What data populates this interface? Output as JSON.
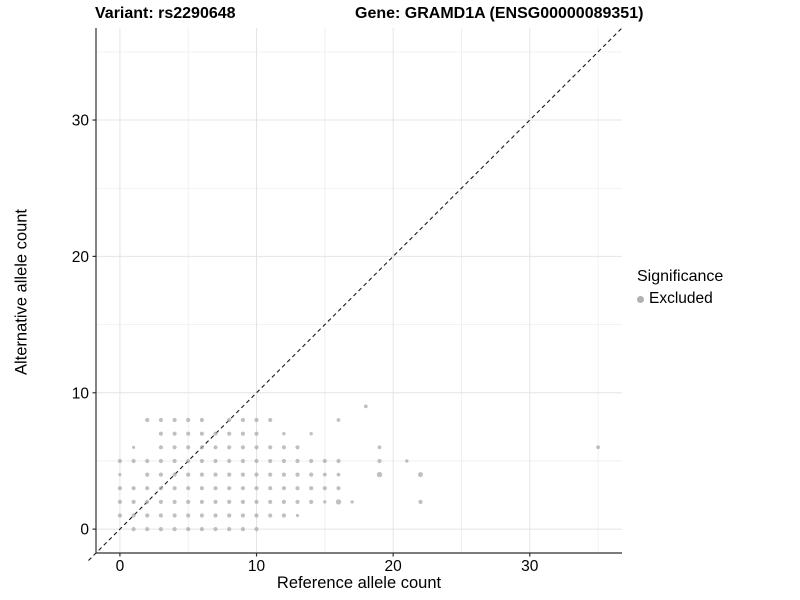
{
  "header": {
    "variant_title": "Variant: rs2290648",
    "gene_title": "Gene: GRAMD1A (ENSG00000089351)"
  },
  "chart_data": {
    "type": "scatter",
    "xlabel": "Reference allele count",
    "ylabel": "Alternative allele count",
    "xlim": [
      -1.75,
      36.75
    ],
    "ylim": [
      -1.75,
      36.75
    ],
    "x_ticks": [
      0,
      10,
      20,
      30
    ],
    "y_ticks": [
      0,
      10,
      20,
      30
    ],
    "minor_gridlines": [
      5,
      15,
      25,
      35
    ],
    "grid": "on",
    "identity_line": {
      "style": "dashed",
      "slope": 1,
      "intercept": 0
    },
    "legend": {
      "title": "Significance",
      "position": "right",
      "items": [
        {
          "label": "Excluded",
          "color": "#a8a8a8"
        }
      ]
    },
    "series": [
      {
        "name": "Excluded",
        "points_format": "[x, y, radius_px]",
        "points": [
          [
            1,
            0,
            2.1
          ],
          [
            2,
            0,
            2.1
          ],
          [
            3,
            0,
            2.1
          ],
          [
            4,
            0,
            2.1
          ],
          [
            5,
            0,
            2.1
          ],
          [
            6,
            0,
            2.1
          ],
          [
            7,
            0,
            2.1
          ],
          [
            8,
            0,
            2.1
          ],
          [
            9,
            0,
            2.1
          ],
          [
            10,
            0,
            2.1
          ],
          [
            0,
            1,
            2.1
          ],
          [
            1,
            1,
            2.1
          ],
          [
            2,
            1,
            2.1
          ],
          [
            3,
            1,
            2.1
          ],
          [
            4,
            1,
            2.1
          ],
          [
            5,
            1,
            2.1
          ],
          [
            6,
            1,
            2.1
          ],
          [
            7,
            1,
            2.1
          ],
          [
            8,
            1,
            2.1
          ],
          [
            9,
            1,
            2.1
          ],
          [
            10,
            1,
            2.1
          ],
          [
            11,
            1,
            2.1
          ],
          [
            12,
            1,
            2.1
          ],
          [
            13,
            1,
            1.6
          ],
          [
            0,
            2,
            2.1
          ],
          [
            1,
            2,
            2.1
          ],
          [
            2,
            2,
            2.1
          ],
          [
            3,
            2,
            2.1
          ],
          [
            4,
            2,
            2.1
          ],
          [
            5,
            2,
            2.1
          ],
          [
            6,
            2,
            2.1
          ],
          [
            7,
            2,
            2.1
          ],
          [
            8,
            2,
            2.1
          ],
          [
            9,
            2,
            2.1
          ],
          [
            10,
            2,
            2.1
          ],
          [
            11,
            2,
            2.1
          ],
          [
            12,
            2,
            2.1
          ],
          [
            13,
            2,
            2.1
          ],
          [
            14,
            2,
            2.1
          ],
          [
            15,
            2,
            1.7
          ],
          [
            16,
            2,
            2.7
          ],
          [
            17,
            2,
            1.7
          ],
          [
            22,
            2,
            2.1
          ],
          [
            0,
            3,
            2.1
          ],
          [
            1,
            3,
            2.1
          ],
          [
            2,
            3,
            2.1
          ],
          [
            3,
            3,
            2.1
          ],
          [
            4,
            3,
            2.1
          ],
          [
            5,
            3,
            2.1
          ],
          [
            6,
            3,
            2.1
          ],
          [
            7,
            3,
            2.1
          ],
          [
            8,
            3,
            2.1
          ],
          [
            9,
            3,
            2.1
          ],
          [
            10,
            3,
            2.1
          ],
          [
            11,
            3,
            2.1
          ],
          [
            12,
            3,
            2.1
          ],
          [
            13,
            3,
            2.1
          ],
          [
            14,
            3,
            2.1
          ],
          [
            15,
            3,
            2.1
          ],
          [
            16,
            3,
            2.1
          ],
          [
            0,
            4,
            1.6
          ],
          [
            2,
            4,
            2.1
          ],
          [
            3,
            4,
            2.1
          ],
          [
            4,
            4,
            2.1
          ],
          [
            5,
            4,
            2.1
          ],
          [
            6,
            4,
            2.1
          ],
          [
            7,
            4,
            2.1
          ],
          [
            8,
            4,
            2.1
          ],
          [
            9,
            4,
            2.1
          ],
          [
            10,
            4,
            2.1
          ],
          [
            11,
            4,
            2.1
          ],
          [
            12,
            4,
            2.1
          ],
          [
            13,
            4,
            2.1
          ],
          [
            14,
            4,
            2.1
          ],
          [
            15,
            4,
            1.9
          ],
          [
            16,
            4,
            1.9
          ],
          [
            19,
            4,
            2.7
          ],
          [
            22,
            4,
            2.5
          ],
          [
            0,
            5,
            2.1
          ],
          [
            1,
            5,
            2.1
          ],
          [
            2,
            5,
            2.1
          ],
          [
            3,
            5,
            2.1
          ],
          [
            4,
            5,
            2.1
          ],
          [
            5,
            5,
            2.1
          ],
          [
            6,
            5,
            2.1
          ],
          [
            7,
            5,
            2.1
          ],
          [
            8,
            5,
            2.1
          ],
          [
            9,
            5,
            2.1
          ],
          [
            10,
            5,
            2.1
          ],
          [
            11,
            5,
            2.1
          ],
          [
            12,
            5,
            2.1
          ],
          [
            13,
            5,
            2.1
          ],
          [
            14,
            5,
            2.1
          ],
          [
            15,
            5,
            2.1
          ],
          [
            16,
            5,
            2.1
          ],
          [
            19,
            5,
            2.1
          ],
          [
            21,
            5,
            1.7
          ],
          [
            1,
            6,
            1.6
          ],
          [
            3,
            6,
            2.1
          ],
          [
            4,
            6,
            2.1
          ],
          [
            5,
            6,
            2.1
          ],
          [
            6,
            6,
            2.1
          ],
          [
            7,
            6,
            2.1
          ],
          [
            8,
            6,
            2.1
          ],
          [
            9,
            6,
            2.1
          ],
          [
            10,
            6,
            2.1
          ],
          [
            11,
            6,
            2.1
          ],
          [
            12,
            6,
            2.1
          ],
          [
            13,
            6,
            2.1
          ],
          [
            19,
            6,
            1.9
          ],
          [
            35,
            6,
            1.9
          ],
          [
            3,
            7,
            2.1
          ],
          [
            4,
            7,
            2.1
          ],
          [
            5,
            7,
            2.1
          ],
          [
            6,
            7,
            2.1
          ],
          [
            7,
            7,
            2.1
          ],
          [
            8,
            7,
            2.1
          ],
          [
            9,
            7,
            2.1
          ],
          [
            10,
            7,
            2.1
          ],
          [
            12,
            7,
            1.7
          ],
          [
            14,
            7,
            1.7
          ],
          [
            2,
            8,
            2.1
          ],
          [
            3,
            8,
            2.1
          ],
          [
            4,
            8,
            2.1
          ],
          [
            5,
            8,
            2.1
          ],
          [
            6,
            8,
            2.1
          ],
          [
            8,
            8,
            2.1
          ],
          [
            9,
            8,
            2.1
          ],
          [
            10,
            8,
            2.1
          ],
          [
            11,
            8,
            2.1
          ],
          [
            16,
            8,
            1.9
          ],
          [
            18,
            9,
            1.9
          ]
        ]
      }
    ]
  },
  "colors": {
    "point": "#a8a8a8",
    "point_opacity": 0.72,
    "grid_major": "#e4e4e4",
    "grid_minor": "#ededed",
    "axis": "#2f2f2f",
    "identity_line": "#1a1a1a",
    "text": "#000000",
    "background": "#ffffff"
  }
}
